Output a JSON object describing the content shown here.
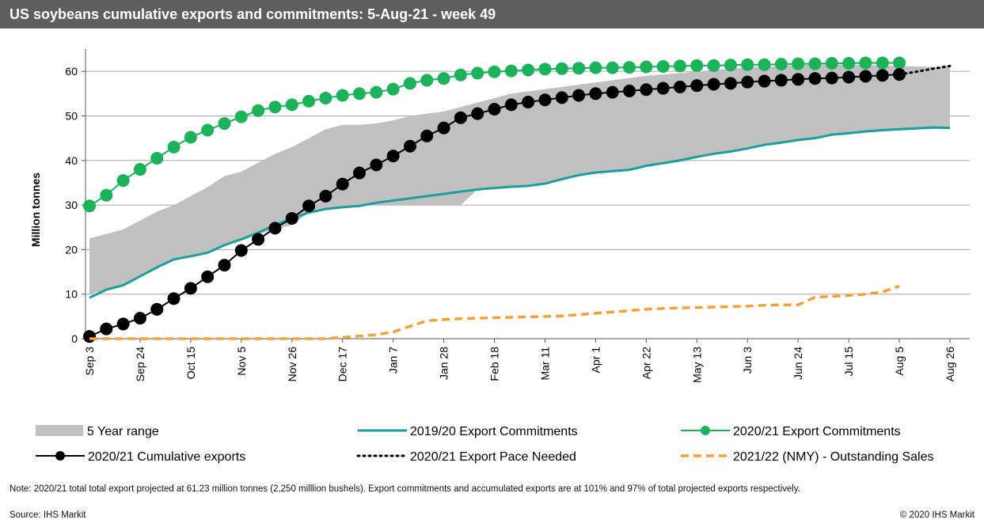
{
  "chart_data": {
    "type": "line",
    "title": "US soybeans cumulative exports and commitments: 5-Aug-21 - week 49",
    "y_label": "Million tonnes",
    "categories": [
      "Sep 3",
      null,
      null,
      "Sep 24",
      null,
      null,
      "Oct 15",
      null,
      null,
      "Nov 5",
      null,
      null,
      "Nov 26",
      null,
      null,
      "Dec 17",
      null,
      null,
      "Jan 7",
      null,
      null,
      "Jan 28",
      null,
      null,
      "Feb 18",
      null,
      null,
      "Mar 11",
      null,
      null,
      "Apr 1",
      null,
      null,
      "Apr 22",
      null,
      null,
      "May 13",
      null,
      null,
      "Jun 3",
      null,
      null,
      "Jun 24",
      null,
      null,
      "Jul 15",
      null,
      null,
      "Aug 5",
      null,
      null,
      "Aug 26"
    ],
    "ylim": [
      0,
      65
    ],
    "yticks": [
      0,
      10,
      20,
      30,
      40,
      50,
      60
    ],
    "grid": true,
    "range": {
      "name": "5 Year range",
      "color": "#c0c0c0",
      "lower": [
        10,
        11,
        12,
        14,
        16,
        17.8,
        18.5,
        19.3,
        21,
        22.3,
        23.5,
        24.5,
        25.5,
        28.3,
        29.1,
        29.5,
        29.8,
        30,
        30,
        30,
        30,
        30,
        30,
        33.5,
        33.8,
        34.1,
        34.3,
        34.8,
        35.8,
        36.7,
        37.3,
        37.6,
        37.9,
        38.8,
        39.4,
        40,
        40.8,
        41.5,
        42,
        42.7,
        43.5,
        44,
        44.6,
        45,
        45.8,
        46.1,
        46.5,
        46.8,
        47,
        47.2,
        47.4,
        47.4
      ],
      "upper": [
        22.5,
        23.5,
        24.5,
        26.5,
        28.5,
        30,
        32,
        34,
        36.5,
        37.5,
        39.5,
        41.5,
        43,
        45,
        47,
        48,
        48,
        48.3,
        49,
        50,
        50.5,
        51,
        52,
        53,
        54,
        55,
        55.5,
        56,
        56.5,
        57,
        57.5,
        58,
        58.5,
        59,
        59.3,
        59.6,
        60,
        60.3,
        60.6,
        60.9,
        61,
        61.2,
        61.4,
        61.5,
        61.5,
        61.5,
        61.4,
        61.3,
        61.2,
        61.1,
        61,
        61
      ]
    },
    "series": [
      {
        "name": "2019/20 Export Commitments",
        "color": "#1a9e9e",
        "style": "solid",
        "values": [
          9.2,
          11,
          12,
          14,
          16,
          17.8,
          18.5,
          19.3,
          21,
          22.3,
          23.8,
          25.5,
          27,
          28.3,
          29.1,
          29.5,
          29.8,
          30.5,
          31,
          31.5,
          32,
          32.5,
          33,
          33.5,
          33.8,
          34.1,
          34.3,
          34.8,
          35.8,
          36.7,
          37.3,
          37.6,
          37.9,
          38.8,
          39.4,
          40,
          40.8,
          41.5,
          42,
          42.7,
          43.5,
          44,
          44.6,
          45,
          45.8,
          46.1,
          46.5,
          46.8,
          47,
          47.2,
          47.4,
          47.3
        ]
      },
      {
        "name": "2020/21 Export Commitments",
        "color": "#1ab35a",
        "style": "markers",
        "values": [
          29.8,
          32.2,
          35.5,
          38,
          40.5,
          43,
          45.2,
          46.8,
          48.3,
          49.8,
          51.2,
          52,
          52.5,
          53.3,
          54,
          54.6,
          55,
          55.3,
          56,
          57.3,
          58,
          58.4,
          59.2,
          59.6,
          59.9,
          60.1,
          60.3,
          60.5,
          60.6,
          60.7,
          60.8,
          60.8,
          60.9,
          61,
          61.1,
          61.2,
          61.3,
          61.3,
          61.4,
          61.5,
          61.5,
          61.6,
          61.7,
          61.7,
          61.8,
          61.8,
          61.9,
          61.9,
          61.9,
          null,
          null,
          null
        ]
      },
      {
        "name": "2020/21 Cumulative exports",
        "color": "#000000",
        "style": "markers",
        "values": [
          0.5,
          2.2,
          3.3,
          4.6,
          6.6,
          9,
          11.3,
          13.9,
          16.5,
          19.8,
          22.3,
          24.8,
          27,
          29.8,
          32,
          34.7,
          37.2,
          39,
          41,
          43.2,
          45.5,
          47.3,
          49.6,
          50.5,
          51.5,
          52.5,
          53.1,
          53.6,
          54.1,
          54.6,
          55,
          55.3,
          55.6,
          55.9,
          56.2,
          56.5,
          56.8,
          57.1,
          57.3,
          57.6,
          57.8,
          58,
          58.2,
          58.4,
          58.5,
          58.7,
          58.9,
          59.1,
          59.3,
          null,
          null,
          null
        ]
      },
      {
        "name": "2020/21 Export Pace Needed",
        "color": "#000000",
        "style": "dotted",
        "values": [
          null,
          null,
          null,
          null,
          null,
          null,
          null,
          null,
          null,
          null,
          null,
          null,
          null,
          null,
          null,
          null,
          null,
          null,
          null,
          null,
          null,
          null,
          null,
          null,
          null,
          null,
          null,
          null,
          null,
          null,
          null,
          null,
          null,
          null,
          null,
          null,
          null,
          null,
          null,
          null,
          null,
          null,
          null,
          null,
          null,
          null,
          null,
          null,
          59.3,
          59.9,
          60.6,
          61.2
        ]
      },
      {
        "name": "2021/22 (NMY) - Outstanding Sales",
        "color": "#f7a035",
        "style": "dashed",
        "values": [
          0,
          0,
          0,
          0,
          0,
          0,
          0,
          0,
          0,
          0,
          0,
          0,
          0,
          0,
          0,
          0.3,
          0.6,
          0.9,
          1.5,
          2.8,
          4,
          4.3,
          4.5,
          4.6,
          4.7,
          4.8,
          4.9,
          5,
          5.1,
          5.4,
          5.7,
          6,
          6.3,
          6.6,
          6.8,
          6.9,
          7,
          7.1,
          7.2,
          7.3,
          7.5,
          7.6,
          7.6,
          9.3,
          9.5,
          9.7,
          10,
          10.5,
          11.8,
          null,
          null,
          null
        ]
      }
    ],
    "note": "Note: 2020/21 total total export projected at 61.23 million tonnes (2,250  milllion bushels). Export commitments and accumulated exports are at 101% and 97% of total projected exports respectively.",
    "source": "Source: IHS Markit",
    "copyright": "© 2020 IHS Markit"
  }
}
